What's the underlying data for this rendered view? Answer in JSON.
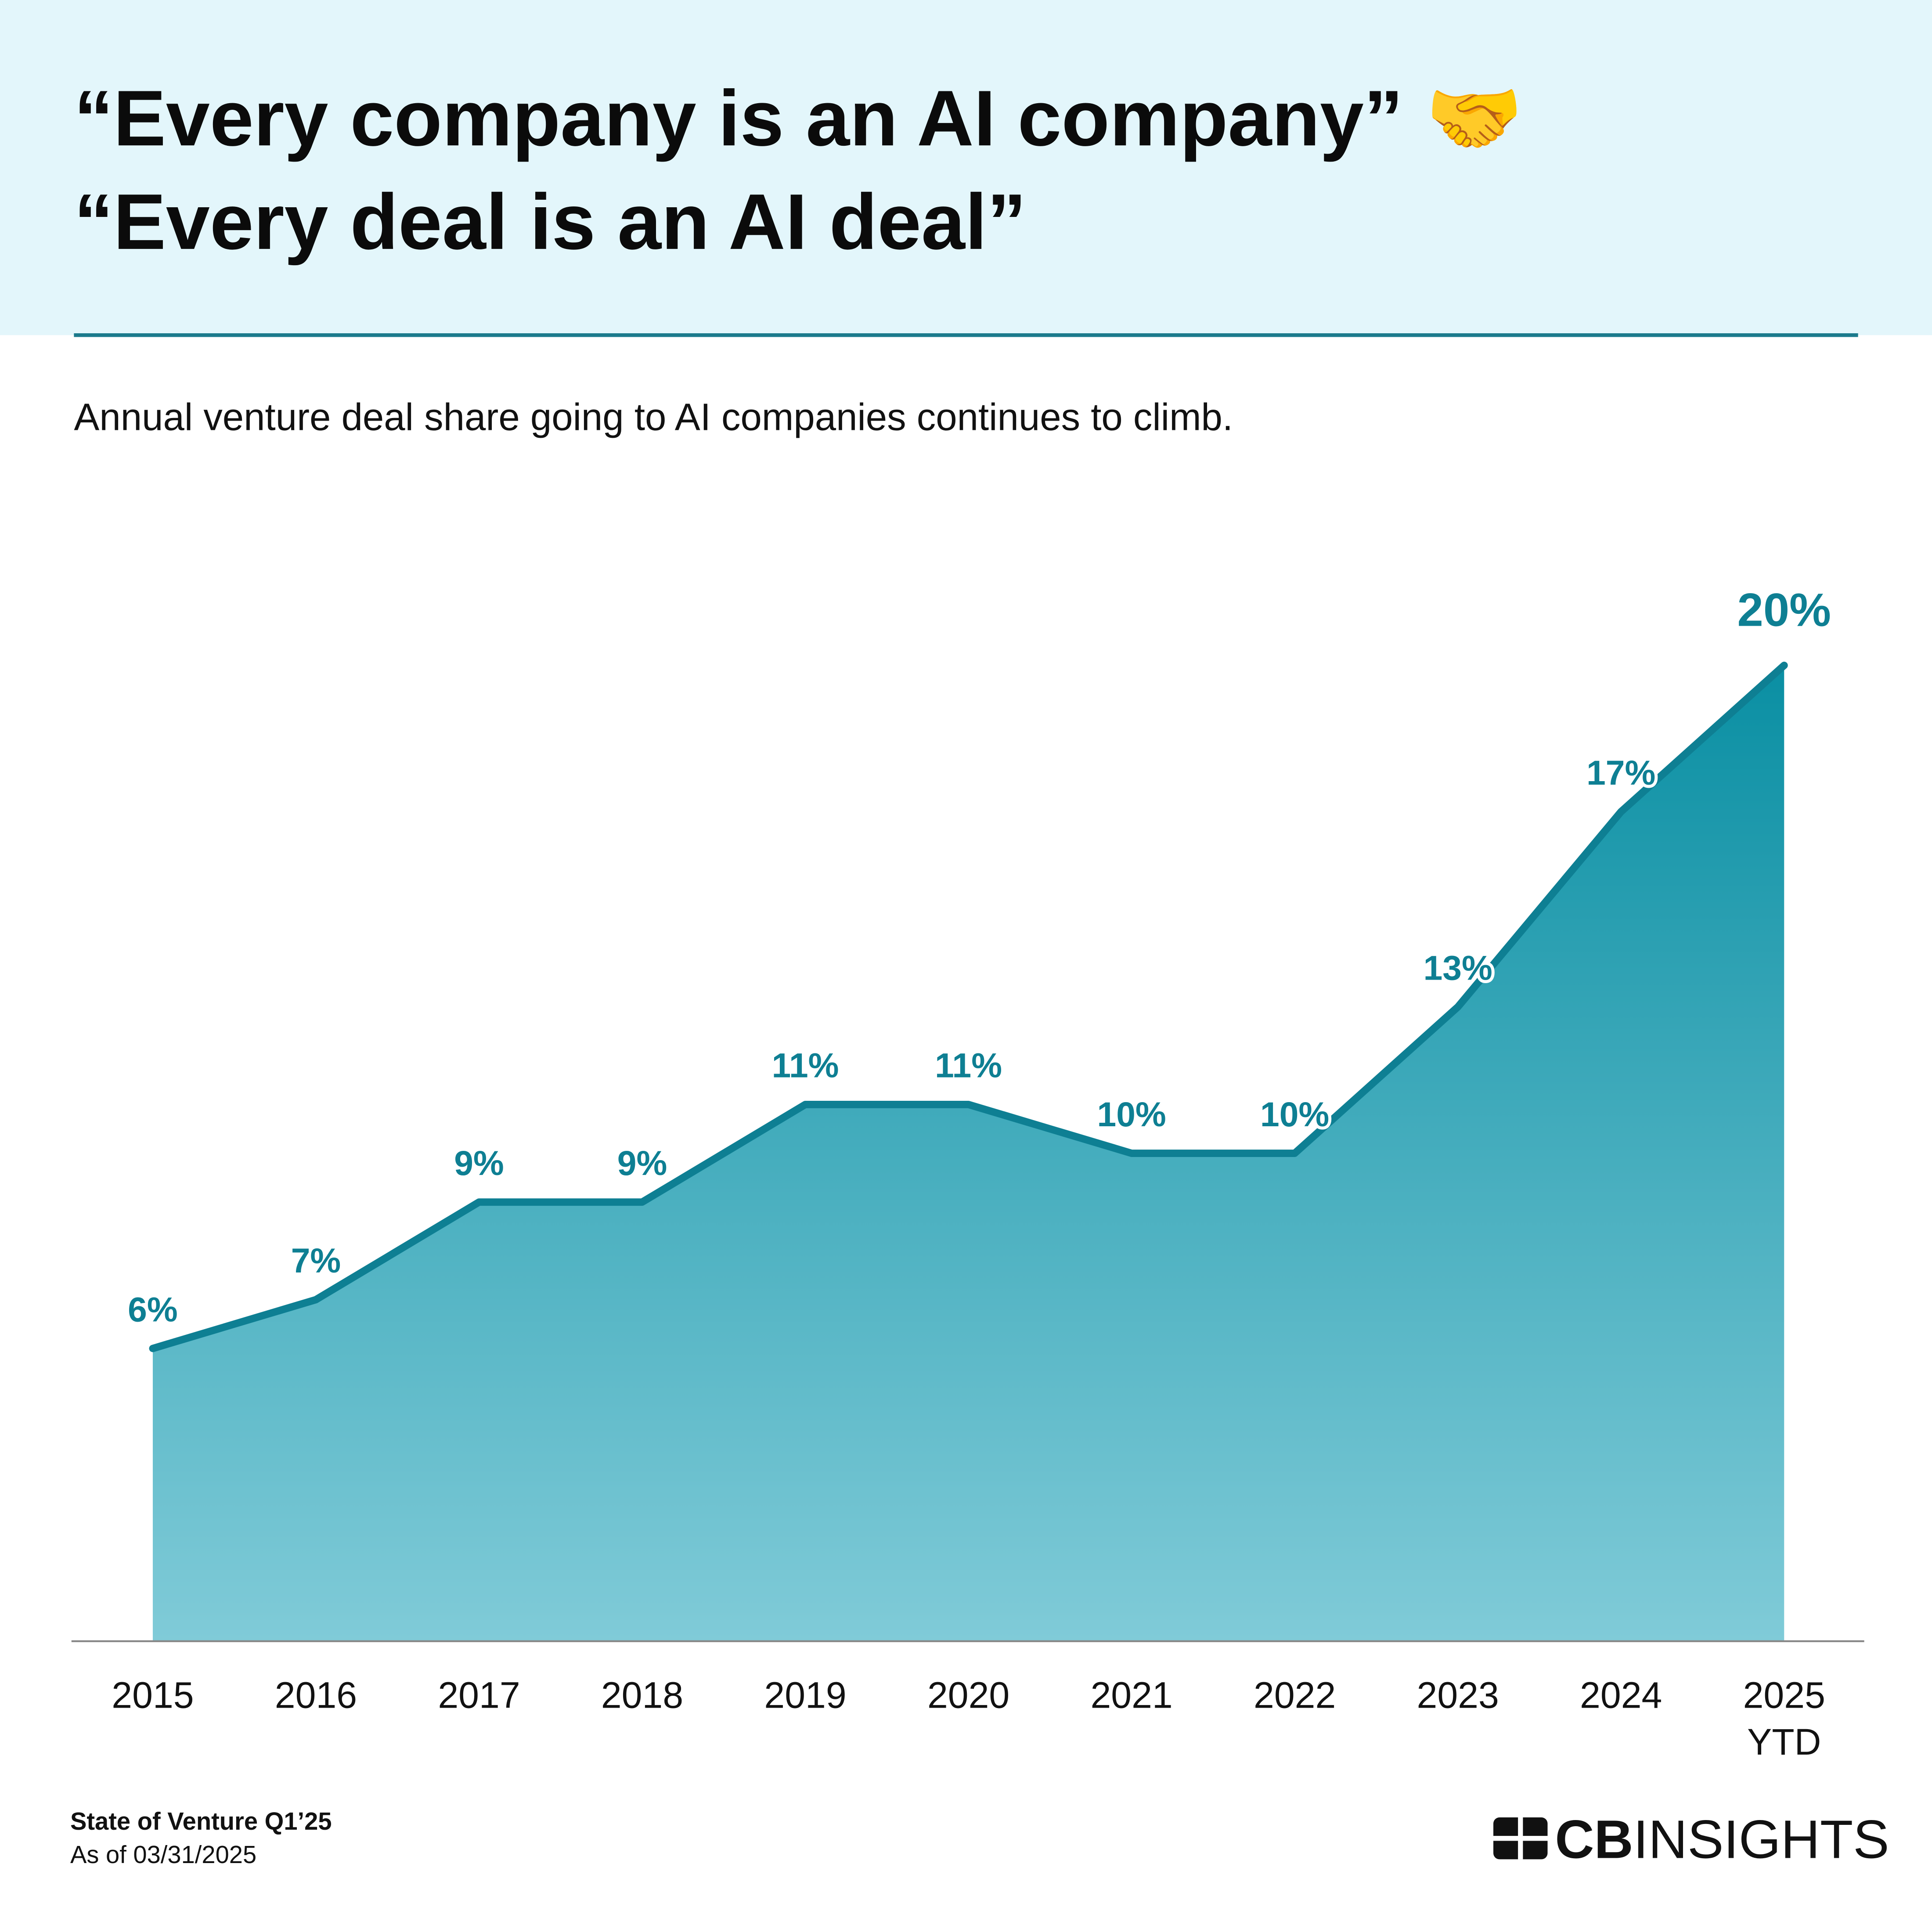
{
  "chart_data": {
    "type": "area",
    "title_lines": [
      "“Every company is an AI company” 🤝",
      "“Every deal is an AI deal”"
    ],
    "subtitle": "Annual venture deal share going to AI companies continues to climb.",
    "categories": [
      "2015",
      "2016",
      "2017",
      "2018",
      "2019",
      "2020",
      "2021",
      "2022",
      "2023",
      "2024",
      "2025 YTD"
    ],
    "values": [
      6,
      7,
      9,
      9,
      11,
      11,
      10,
      10,
      13,
      17,
      20
    ],
    "value_labels": [
      "6%",
      "7%",
      "9%",
      "9%",
      "11%",
      "11%",
      "10%",
      "10%",
      "13%",
      "17%",
      "20%"
    ],
    "color": "#0e7f93",
    "fill_top": "#0a8fa3",
    "fill_bottom": "#80cbd8",
    "ylim": [
      0,
      20
    ],
    "source": "State of Venture Q1’25",
    "date_note": "As of 03/31/2025",
    "logo": {
      "bold": "CB",
      "light": "INSIGHTS"
    }
  }
}
